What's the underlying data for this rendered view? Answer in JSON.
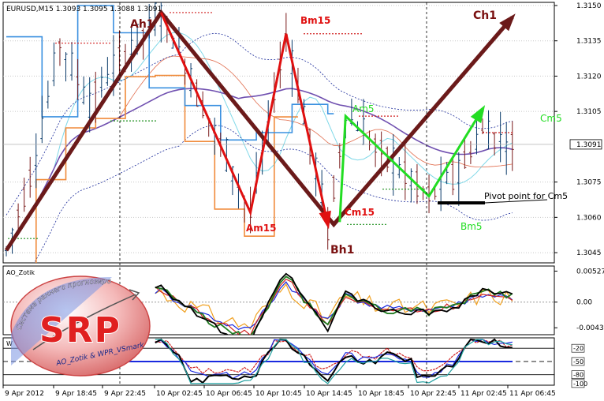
{
  "chart_data": {
    "type": "line",
    "symbol_header": "EURUSD,M15  1.3093 1.3095 1.3088 1.3091",
    "current_price": {
      "value": 1.3091,
      "label": "1.3091"
    },
    "main_panel": {
      "ylim": [
        1.3041,
        1.3151
      ],
      "y_ticks": [
        {
          "value": 1.315,
          "label": "1.3150"
        },
        {
          "value": 1.3135,
          "label": "1.3135"
        },
        {
          "value": 1.312,
          "label": "1.3120"
        },
        {
          "value": 1.3105,
          "label": "1.3105"
        },
        {
          "value": 1.3075,
          "label": "1.3075"
        },
        {
          "value": 1.306,
          "label": "1.3060"
        },
        {
          "value": 1.3045,
          "label": "1.3045"
        }
      ],
      "wave_labels": [
        {
          "text": "Ah1",
          "color": "#7a1010"
        },
        {
          "text": "Bh1",
          "color": "#7a1010"
        },
        {
          "text": "Ch1",
          "color": "#7a1010"
        },
        {
          "text": "Bm15",
          "color": "#e01010"
        },
        {
          "text": "Am15",
          "color": "#e01010"
        },
        {
          "text": "Cm15",
          "color": "#e01010"
        },
        {
          "text": "Am5",
          "color": "#22dd22"
        },
        {
          "text": "Bm5",
          "color": "#22dd22"
        },
        {
          "text": "Cm5",
          "color": "#22dd22"
        },
        {
          "text": "Pivot point for Cm5",
          "color": "#000000"
        }
      ],
      "series": [
        {
          "color": "#6b1a1a",
          "points": [
            [
              0,
              1.3046
            ],
            [
              26,
              1.3147
            ],
            [
              55,
              1.3057
            ],
            [
              85,
              1.3145
            ]
          ]
        },
        {
          "color": "#e01010",
          "points": [
            [
              26,
              1.3147
            ],
            [
              41,
              1.3062
            ],
            [
              47,
              1.3138
            ],
            [
              54,
              1.3057
            ]
          ]
        },
        {
          "color": "#22dd22",
          "points": [
            [
              56,
              1.3058
            ],
            [
              57,
              1.3103
            ],
            [
              71,
              1.3069
            ],
            [
              80,
              1.3106
            ]
          ]
        }
      ]
    },
    "ao_panel": {
      "title": "AO_Zotik",
      "y_ticks": [
        {
          "value": 0.00527,
          "label": "0.00527"
        },
        {
          "value": 0.0,
          "label": "0.00"
        },
        {
          "value": -0.00436,
          "label": "-0.00436"
        }
      ]
    },
    "wpr_panel": {
      "title": "W",
      "y_ticks": [
        {
          "value": -20,
          "label": "-20"
        },
        {
          "value": -50,
          "label": "-50"
        },
        {
          "value": -80,
          "label": "-80"
        },
        {
          "value": -100,
          "label": "-100"
        }
      ]
    },
    "x_ticks": [
      "9 Apr 2012",
      "9 Apr 18:45",
      "9 Apr 22:45",
      "10 Apr 02:45",
      "10 Apr 06:45",
      "10 Apr 10:45",
      "10 Apr 14:45",
      "10 Apr 18:45",
      "10 Apr 22:45",
      "11 Apr 02:45",
      "11 Apr 06:45"
    ],
    "logo": {
      "letters": "SRP",
      "arc_text": "Система раннего прогнозирования",
      "author_text": "AO_Zotik & WPR_VSmark"
    }
  }
}
